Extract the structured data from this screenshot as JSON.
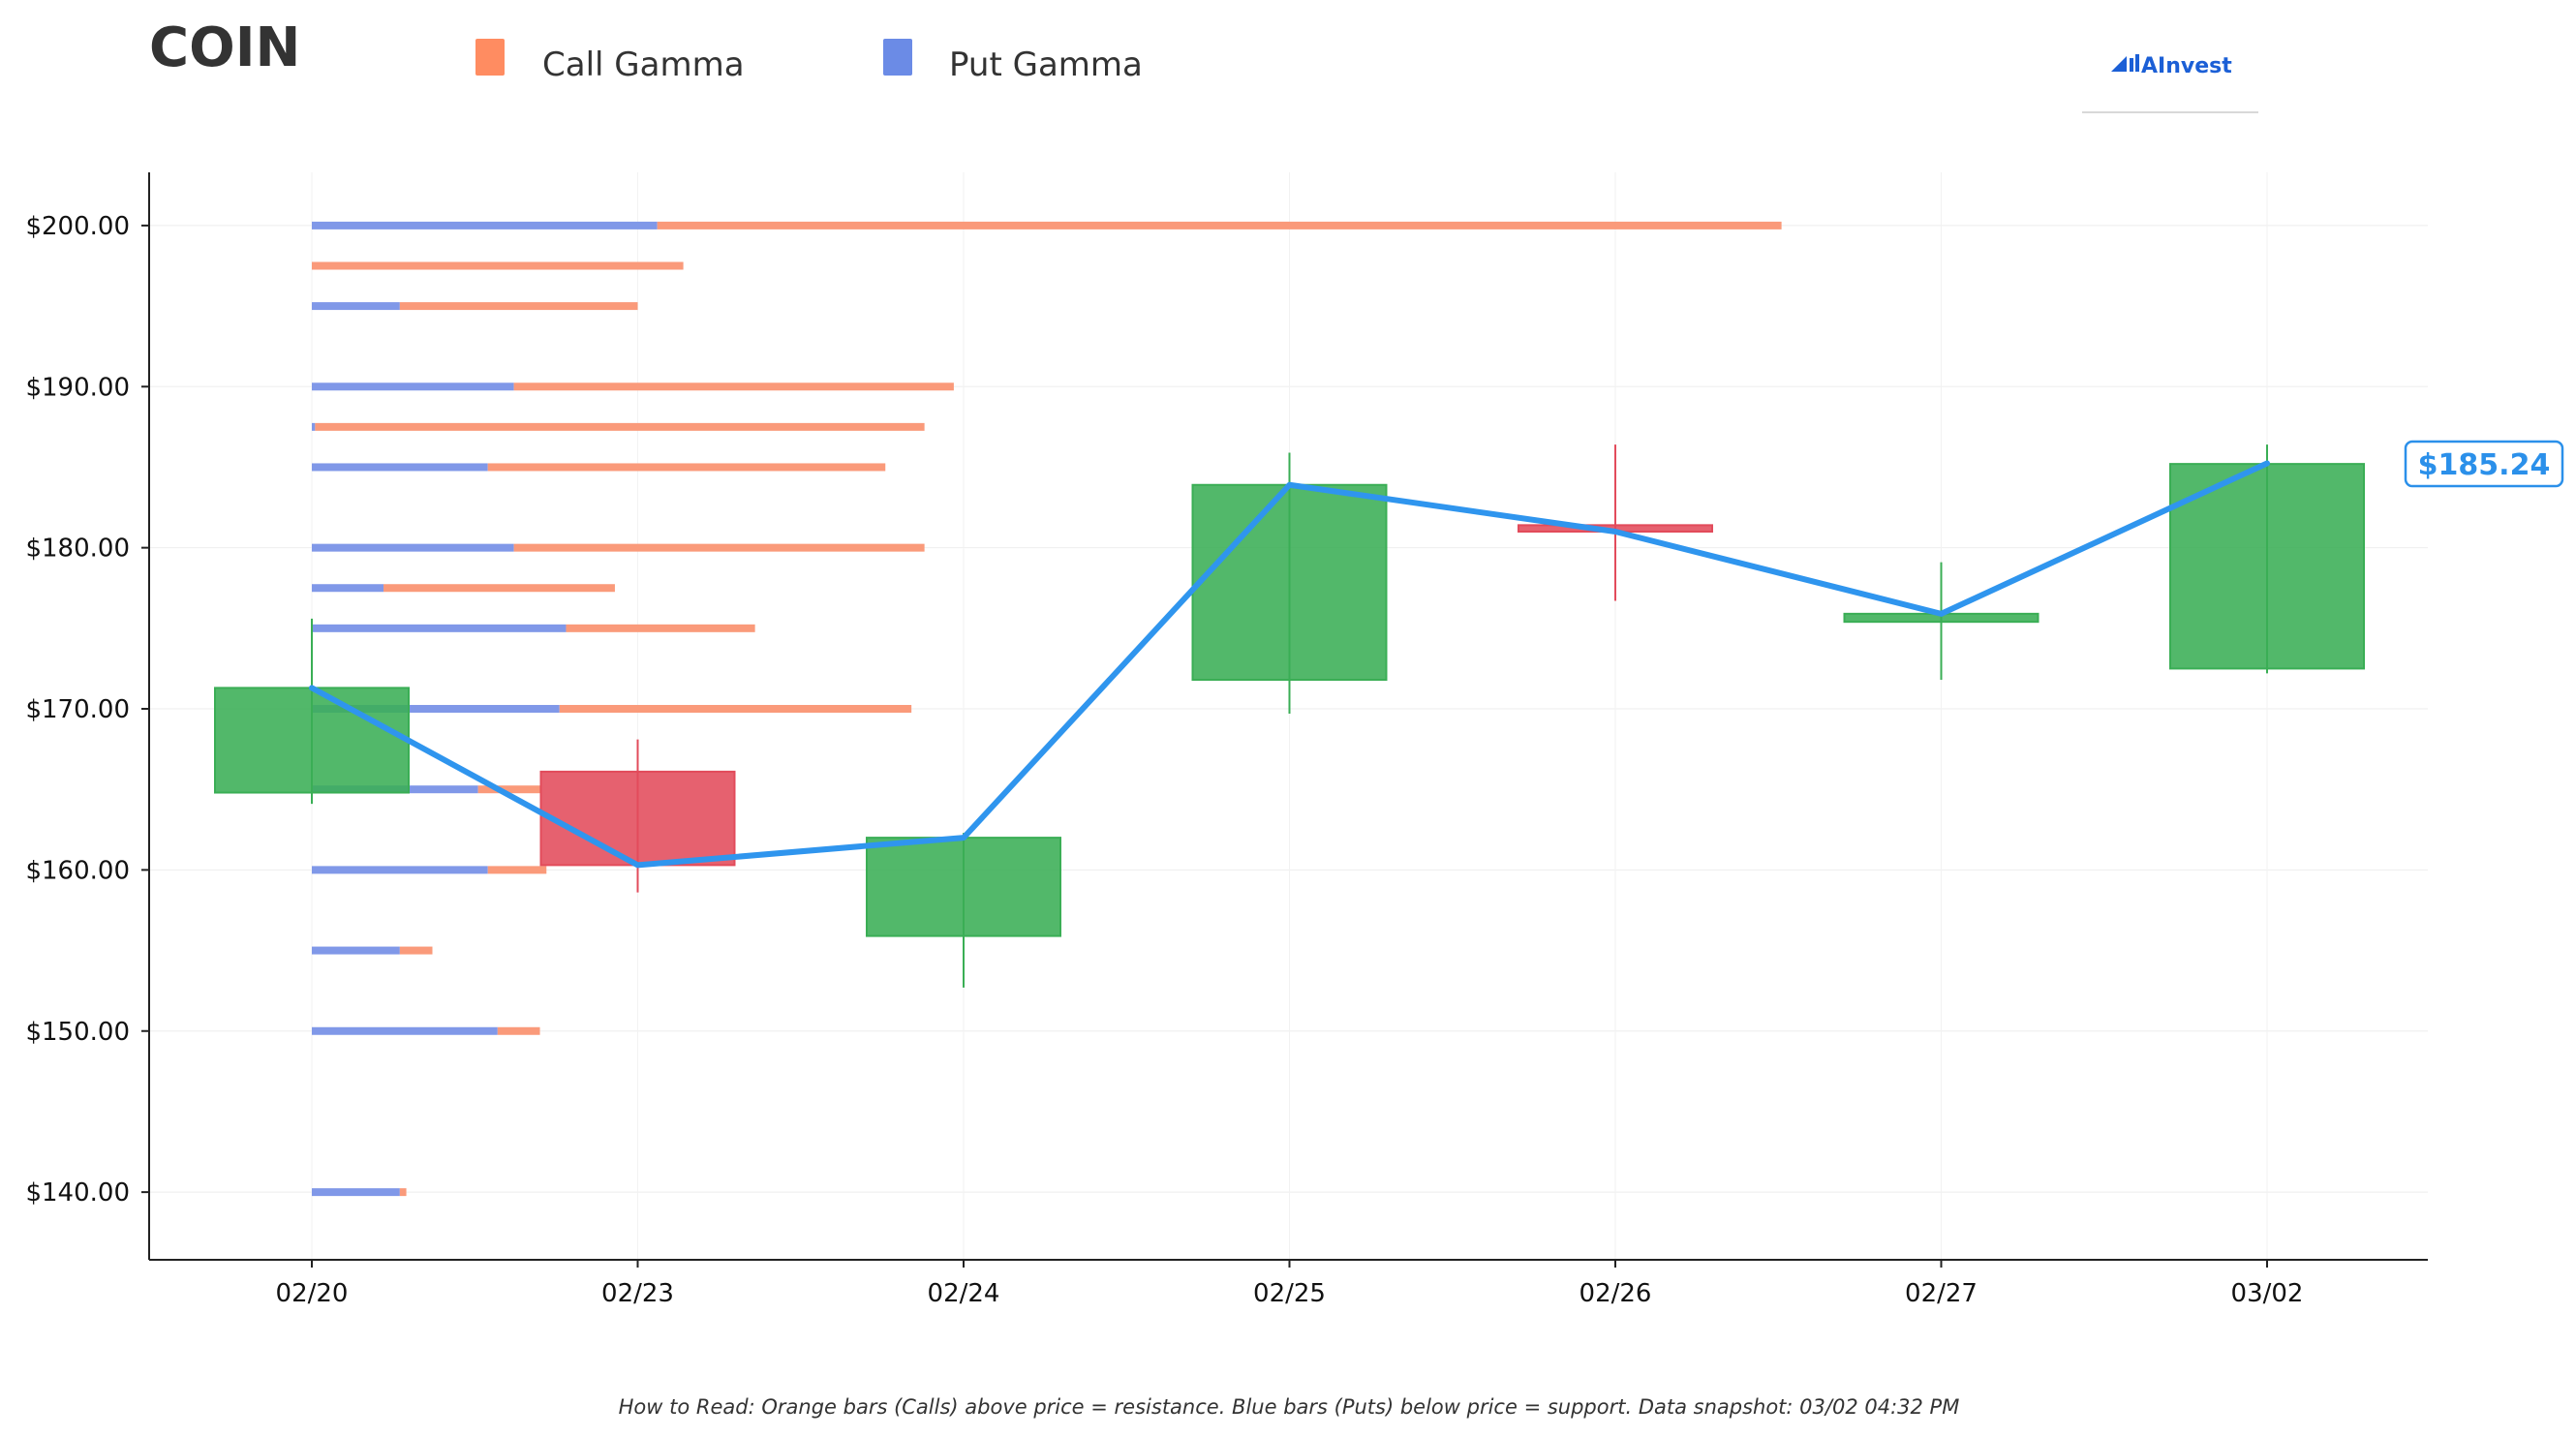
{
  "title": "COIN",
  "legend": [
    {
      "label": "Call Gamma",
      "color": "#ff8c61"
    },
    {
      "label": "Put Gamma",
      "color": "#6b8be6"
    }
  ],
  "brand": {
    "name": "AInvest",
    "icon": "chart-arrow-icon",
    "color": "#1b5fd6"
  },
  "footnote": "How to Read: Orange bars (Calls) above price = resistance. Blue bars (Puts) below price = support. Data snapshot: 03/02 04:32 PM",
  "price_label": "$185.24",
  "colors": {
    "up": "#3aae55",
    "down": "#e24b5b",
    "line": "#2f95ee",
    "call": "#fa9a7a",
    "put": "#8098e8"
  },
  "chart_data": {
    "type": "candlestick",
    "categories": [
      "02/20",
      "02/23",
      "02/24",
      "02/25",
      "02/26",
      "02/27",
      "03/02"
    ],
    "candles": [
      {
        "date": "02/20",
        "open": 164.8,
        "high": 175.6,
        "low": 164.1,
        "close": 171.3
      },
      {
        "date": "02/23",
        "open": 166.1,
        "high": 168.1,
        "low": 158.6,
        "close": 160.3
      },
      {
        "date": "02/24",
        "open": 155.9,
        "high": 162.3,
        "low": 152.7,
        "close": 162.0
      },
      {
        "date": "02/25",
        "open": 171.8,
        "high": 185.9,
        "low": 169.7,
        "close": 183.9
      },
      {
        "date": "02/26",
        "open": 181.4,
        "high": 186.4,
        "low": 176.7,
        "close": 181.0
      },
      {
        "date": "02/27",
        "open": 175.4,
        "high": 179.1,
        "low": 171.8,
        "close": 175.9
      },
      {
        "date": "03/02",
        "open": 172.5,
        "high": 186.4,
        "low": 172.2,
        "close": 185.2
      }
    ],
    "close_line": [
      171.3,
      160.3,
      162.0,
      183.9,
      181.0,
      175.9,
      185.24
    ],
    "gamma": [
      {
        "strike": 200.0,
        "call": 3.45,
        "put": 1.06
      },
      {
        "strike": 197.5,
        "call": 1.14,
        "put": 0.0
      },
      {
        "strike": 195.0,
        "call": 0.73,
        "put": 0.27
      },
      {
        "strike": 190.0,
        "call": 1.35,
        "put": 0.62
      },
      {
        "strike": 187.5,
        "call": 1.87,
        "put": 0.01
      },
      {
        "strike": 185.0,
        "call": 1.22,
        "put": 0.54
      },
      {
        "strike": 180.0,
        "call": 1.26,
        "put": 0.62
      },
      {
        "strike": 177.5,
        "call": 0.71,
        "put": 0.22
      },
      {
        "strike": 175.0,
        "call": 0.58,
        "put": 0.78
      },
      {
        "strike": 170.0,
        "call": 1.08,
        "put": 0.76
      },
      {
        "strike": 165.0,
        "call": 0.19,
        "put": 0.51
      },
      {
        "strike": 160.0,
        "call": 0.18,
        "put": 0.54
      },
      {
        "strike": 155.0,
        "call": 0.1,
        "put": 0.27
      },
      {
        "strike": 150.0,
        "call": 0.13,
        "put": 0.57
      },
      {
        "strike": 140.0,
        "call": 0.02,
        "put": 0.27
      }
    ],
    "y_ticks": [
      "$140.00",
      "$150.00",
      "$160.00",
      "$170.00",
      "$180.00",
      "$190.00",
      "$200.00"
    ],
    "ylim": [
      135.8,
      203.3
    ],
    "grid": true,
    "legend_position": "top"
  }
}
